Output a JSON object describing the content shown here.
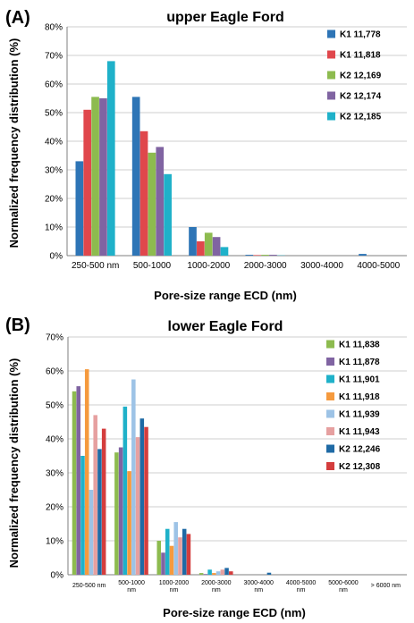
{
  "chart_data": [
    {
      "type": "bar",
      "panel": "(A)",
      "title": "upper Eagle Ford",
      "xlabel": "Pore-size range ECD (nm)",
      "ylabel": "Normalized frequency distribution (%)",
      "ylim": [
        0,
        80
      ],
      "ytick_step": 10,
      "yticks": [
        "0%",
        "10%",
        "20%",
        "30%",
        "40%",
        "50%",
        "60%",
        "70%",
        "80%"
      ],
      "grid": true,
      "legend_position": "top-right",
      "categories": [
        "250-500 nm",
        "500-1000",
        "1000-2000",
        "2000-3000",
        "3000-4000",
        "4000-5000"
      ],
      "series": [
        {
          "name": "K1 11,778",
          "color": "#2e75b6",
          "values": [
            33,
            55.5,
            10,
            0.3,
            0,
            0.6
          ]
        },
        {
          "name": "K1 11,818",
          "color": "#e0474c",
          "values": [
            51,
            43.5,
            5,
            0.2,
            0,
            0
          ]
        },
        {
          "name": "K2 12,169",
          "color": "#8dbb4f",
          "values": [
            55.5,
            36,
            8,
            0.3,
            0,
            0
          ]
        },
        {
          "name": "K2 12,174",
          "color": "#8064a2",
          "values": [
            55,
            38,
            6.5,
            0.3,
            0,
            0
          ]
        },
        {
          "name": "K2 12,185",
          "color": "#1fb1c9",
          "values": [
            68,
            28.5,
            3,
            0.1,
            0,
            0
          ]
        }
      ]
    },
    {
      "type": "bar",
      "panel": "(B)",
      "title": "lower Eagle Ford",
      "xlabel": "Pore-size range ECD (nm)",
      "ylabel": "Normalized frequency distribution (%)",
      "ylim": [
        0,
        70
      ],
      "ytick_step": 10,
      "yticks": [
        "0%",
        "10%",
        "20%",
        "30%",
        "40%",
        "50%",
        "60%",
        "70%"
      ],
      "grid": true,
      "legend_position": "top-right",
      "categories": [
        "250-500 nm",
        "500-1000 nm",
        "1000-2000 nm",
        "2000-3000 nm",
        "3000-4000 nm",
        "4000-5000 nm",
        "5000-6000 nm",
        "> 6000 nm"
      ],
      "series": [
        {
          "name": "K1 11,838",
          "color": "#8dbb4f",
          "values": [
            54,
            36,
            10,
            0.5,
            0,
            0,
            0,
            0
          ]
        },
        {
          "name": "K1 11,878",
          "color": "#8064a2",
          "values": [
            55.5,
            37.5,
            6.5,
            0.2,
            0,
            0,
            0,
            0
          ]
        },
        {
          "name": "K1 11,901",
          "color": "#1fb1c9",
          "values": [
            35,
            49.5,
            13.5,
            1.5,
            0,
            0,
            0,
            0
          ]
        },
        {
          "name": "K1 11,918",
          "color": "#f59a3e",
          "values": [
            60.5,
            30.5,
            8.5,
            0.5,
            0,
            0,
            0,
            0
          ]
        },
        {
          "name": "K1 11,939",
          "color": "#9dc3e6",
          "values": [
            25,
            57.5,
            15.5,
            1,
            0,
            0,
            0,
            0
          ]
        },
        {
          "name": "K1 11,943",
          "color": "#e6a0a0",
          "values": [
            47,
            40.5,
            11,
            1.5,
            0,
            0,
            0,
            0
          ]
        },
        {
          "name": "K2 12,246",
          "color": "#1f6aa5",
          "values": [
            37,
            46,
            13.5,
            2,
            0.6,
            0,
            0,
            0
          ]
        },
        {
          "name": "K2 12,308",
          "color": "#d43d3d",
          "values": [
            43,
            43.5,
            12,
            1,
            0,
            0,
            0,
            0
          ]
        }
      ]
    }
  ]
}
